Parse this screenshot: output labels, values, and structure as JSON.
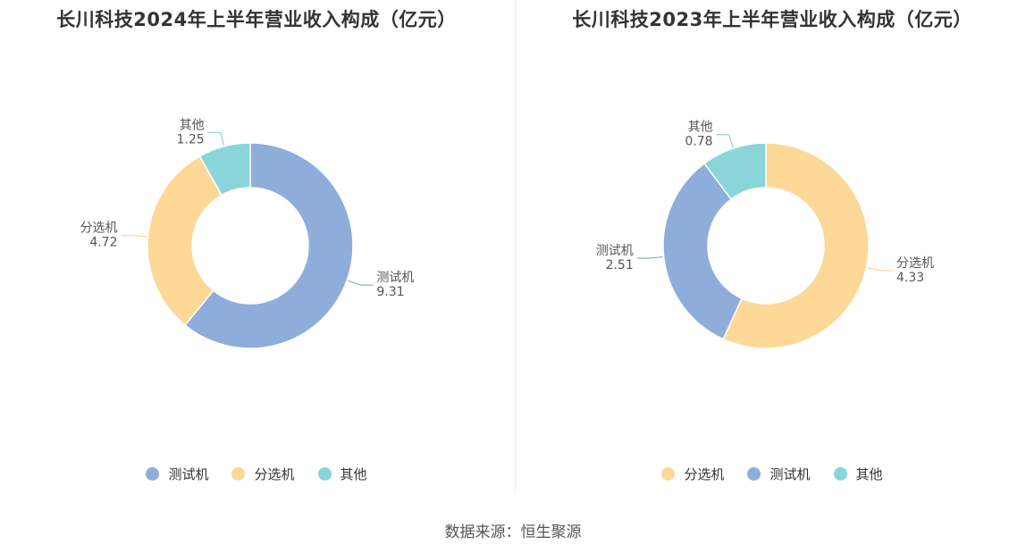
{
  "colors": {
    "测试机": "#8fadda",
    "分选机": "#fdd896",
    "其他": "#8ad5d8"
  },
  "chart_data": [
    {
      "type": "pie",
      "title": "长川科技2024年上半年营业收入构成（亿元）",
      "categories": [
        "测试机",
        "分选机",
        "其他"
      ],
      "values": [
        9.31,
        4.72,
        1.25
      ],
      "legend": "bottom",
      "legend_order": [
        "测试机",
        "分选机",
        "其他"
      ]
    },
    {
      "type": "pie",
      "title": "长川科技2023年上半年营业收入构成（亿元）",
      "categories": [
        "分选机",
        "测试机",
        "其他"
      ],
      "values": [
        4.33,
        2.51,
        0.78
      ],
      "legend": "bottom",
      "legend_order": [
        "分选机",
        "测试机",
        "其他"
      ]
    }
  ],
  "source": "数据来源：恒生聚源"
}
